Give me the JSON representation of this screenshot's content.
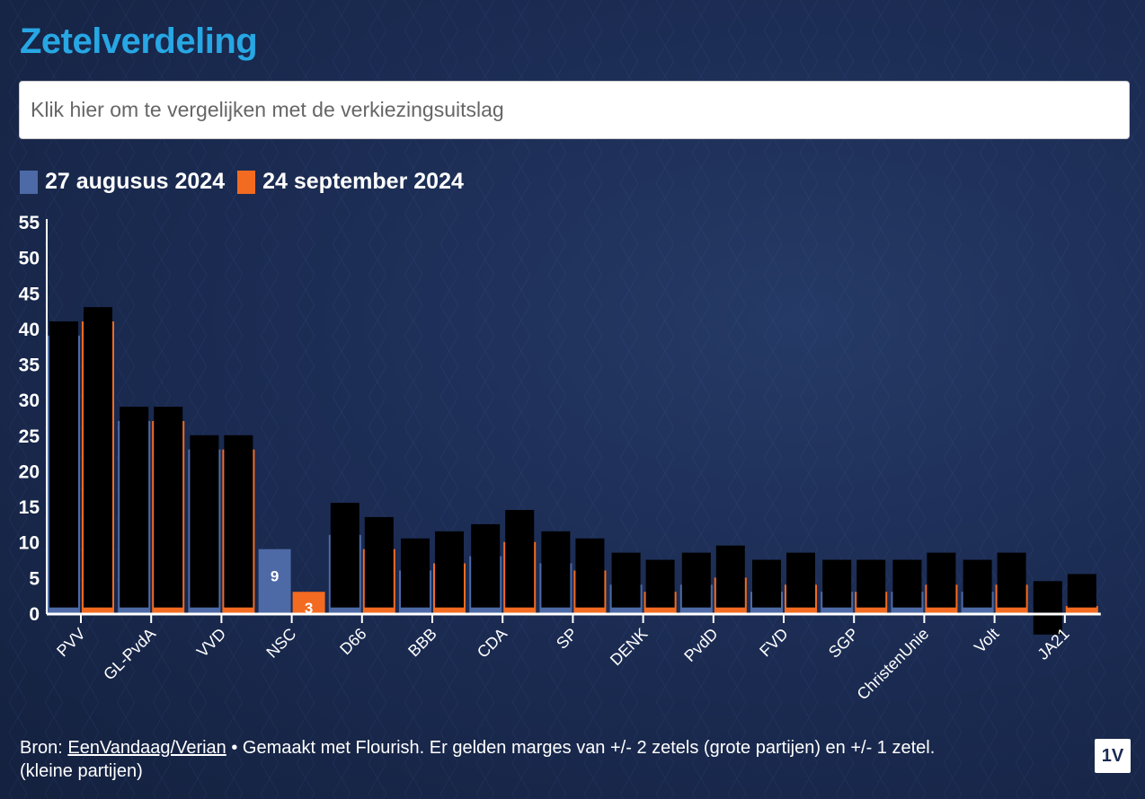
{
  "title": "Zetelverdeling",
  "compare_prompt": "Klik hier om te vergelijken met de verkiezingsuitslag",
  "colors": {
    "series1": "#4d6aa6",
    "series2": "#f26b21",
    "title": "#27a7e4"
  },
  "chart_data": {
    "type": "bar",
    "title": "Zetelverdeling",
    "categories": [
      "PVV",
      "GL-PvdA",
      "VVD",
      "NSC",
      "D66",
      "BBB",
      "CDA",
      "SP",
      "DENK",
      "PvdD",
      "FVD",
      "SGP",
      "ChristenUnie",
      "Volt",
      "JA21"
    ],
    "series": [
      {
        "name": "27 augusus 2024",
        "values": [
          39,
          27,
          23,
          9,
          11,
          6,
          8,
          7,
          4,
          4,
          3,
          3,
          3,
          3,
          0
        ]
      },
      {
        "name": "24 september 2024",
        "values": [
          41,
          27,
          23,
          3,
          9,
          7,
          10,
          6,
          3,
          5,
          4,
          3,
          4,
          4,
          1
        ]
      }
    ],
    "yticks": [
      "0",
      "5",
      "10",
      "15",
      "20",
      "25",
      "30",
      "35",
      "40",
      "45",
      "50",
      "55"
    ],
    "ylim": [
      0,
      55
    ],
    "visible_data_labels": {
      "NSC": [
        "9",
        "3"
      ]
    },
    "legend": "top-left",
    "grid": false
  },
  "footer": {
    "prefix": "Bron: ",
    "source_link": "EenVandaag/Verian",
    "text": " • Gemaakt met Flourish. Er gelden marges van +/- 2 zetels (grote partijen) en +/- 1 zetel.",
    "line2": "(kleine partijen)"
  },
  "badge": "1V"
}
